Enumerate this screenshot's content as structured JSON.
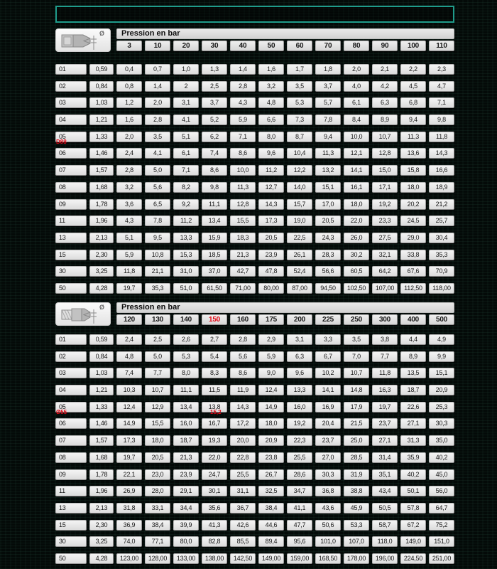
{
  "colors": {
    "note_box_border": "#1f9c8b",
    "red_accent": "#e30613",
    "cell_background": "#e6e6e6",
    "page_background": "#040a08"
  },
  "tables": [
    {
      "header_label": "Pression en bar",
      "diameter_symbol": "Ø",
      "pressures": [
        "3",
        "10",
        "20",
        "30",
        "40",
        "50",
        "60",
        "70",
        "80",
        "90",
        "100",
        "110"
      ],
      "red_pressure_indices": [],
      "rows": [
        {
          "id": "01",
          "diameter": "0,59",
          "values": [
            "0,4",
            "0,7",
            "1,0",
            "1,3",
            "1,4",
            "1,6",
            "1,7",
            "1,8",
            "2,0",
            "2,1",
            "2,2",
            "2,3"
          ]
        },
        {
          "id": "02",
          "diameter": "0,84",
          "values": [
            "0,8",
            "1,4",
            "2",
            "2,5",
            "2,8",
            "3,2",
            "3,5",
            "3,7",
            "4,0",
            "4,2",
            "4,5",
            "4,7"
          ]
        },
        {
          "id": "03",
          "diameter": "1,03",
          "values": [
            "1,2",
            "2,0",
            "3,1",
            "3,7",
            "4,3",
            "4,8",
            "5,3",
            "5,7",
            "6,1",
            "6,3",
            "6,8",
            "7,1"
          ]
        },
        {
          "id": "04",
          "diameter": "1,21",
          "values": [
            "1,6",
            "2,8",
            "4,1",
            "5,2",
            "5,9",
            "6,6",
            "7,3",
            "7,8",
            "8,4",
            "8,9",
            "9,4",
            "9,8"
          ]
        },
        {
          "id": "05",
          "diameter": "1,33",
          "values": [
            "2,0",
            "3,5",
            "5,1",
            "6,2",
            "7,1",
            "8,0",
            "8,7",
            "9,4",
            "10,0",
            "10,7",
            "11,3",
            "11,8"
          ]
        },
        {
          "id": "06",
          "diameter": "1,46",
          "values": [
            "2,4",
            "4,1",
            "6,1",
            "7,4",
            "8,6",
            "9,6",
            "10,4",
            "11,3",
            "12,1",
            "12,8",
            "13,6",
            "14,3"
          ]
        },
        {
          "id": "07",
          "diameter": "1,57",
          "values": [
            "2,8",
            "5,0",
            "7,1",
            "8,6",
            "10,0",
            "11,2",
            "12,2",
            "13,2",
            "14,1",
            "15,0",
            "15,8",
            "16,6"
          ]
        },
        {
          "id": "08",
          "diameter": "1,68",
          "values": [
            "3,2",
            "5,6",
            "8,2",
            "9,8",
            "11,3",
            "12,7",
            "14,0",
            "15,1",
            "16,1",
            "17,1",
            "18,0",
            "18,9"
          ]
        },
        {
          "id": "09",
          "diameter": "1,78",
          "values": [
            "3,6",
            "6,5",
            "9,2",
            "11,1",
            "12,8",
            "14,3",
            "15,7",
            "17,0",
            "18,0",
            "19,2",
            "20,2",
            "21,2"
          ]
        },
        {
          "id": "11",
          "diameter": "1,96",
          "values": [
            "4,3",
            "7,8",
            "11,2",
            "13,4",
            "15,5",
            "17,3",
            "19,0",
            "20,5",
            "22,0",
            "23,3",
            "24,5",
            "25,7"
          ]
        },
        {
          "id": "13",
          "diameter": "2,13",
          "values": [
            "5,1",
            "9,5",
            "13,3",
            "15,9",
            "18,3",
            "20,5",
            "22,5",
            "24,3",
            "26,0",
            "27,5",
            "29,0",
            "30,4"
          ]
        },
        {
          "id": "15",
          "diameter": "2,30",
          "values": [
            "5,9",
            "10,8",
            "15,3",
            "18,5",
            "21,3",
            "23,9",
            "26,1",
            "28,3",
            "30,2",
            "32,1",
            "33,8",
            "35,3"
          ]
        },
        {
          "id": "30",
          "diameter": "3,25",
          "values": [
            "11,8",
            "21,1",
            "31,0",
            "37,0",
            "42,7",
            "47,8",
            "52,4",
            "56,6",
            "60,5",
            "64,2",
            "67,6",
            "70,9"
          ]
        },
        {
          "id": "50",
          "diameter": "4,28",
          "values": [
            "19,7",
            "35,3",
            "51,0",
            "61,50",
            "71,00",
            "80,00",
            "87,00",
            "94,50",
            "102,50",
            "107,00",
            "112,50",
            "118,00"
          ]
        }
      ],
      "annotations": [
        {
          "text": "D88"
        }
      ]
    },
    {
      "header_label": "Pression en bar",
      "diameter_symbol": "Ø",
      "pressures": [
        "120",
        "130",
        "140",
        "150",
        "160",
        "175",
        "200",
        "225",
        "250",
        "300",
        "400",
        "500"
      ],
      "red_pressure_indices": [
        3
      ],
      "rows": [
        {
          "id": "01",
          "diameter": "0,59",
          "values": [
            "2,4",
            "2,5",
            "2,6",
            "2,7",
            "2,8",
            "2,9",
            "3,1",
            "3,3",
            "3,5",
            "3,8",
            "4,4",
            "4,9"
          ]
        },
        {
          "id": "02",
          "diameter": "0,84",
          "values": [
            "4,8",
            "5,0",
            "5,3",
            "5,4",
            "5,6",
            "5,9",
            "6,3",
            "6,7",
            "7,0",
            "7,7",
            "8,9",
            "9,9"
          ]
        },
        {
          "id": "03",
          "diameter": "1,03",
          "values": [
            "7,4",
            "7,7",
            "8,0",
            "8,3",
            "8,6",
            "9,0",
            "9,6",
            "10,2",
            "10,7",
            "11,8",
            "13,5",
            "15,1"
          ]
        },
        {
          "id": "04",
          "diameter": "1,21",
          "values": [
            "10,3",
            "10,7",
            "11,1",
            "11,5",
            "11,9",
            "12,4",
            "13,3",
            "14,1",
            "14,8",
            "16,3",
            "18,7",
            "20,9"
          ]
        },
        {
          "id": "05",
          "diameter": "1,33",
          "values": [
            "12,4",
            "12,9",
            "13,4",
            "13,8",
            "14,3",
            "14,9",
            "16,0",
            "16,9",
            "17,9",
            "19,7",
            "22,6",
            "25,3"
          ]
        },
        {
          "id": "06",
          "diameter": "1,46",
          "values": [
            "14,9",
            "15,5",
            "16,0",
            "16,7",
            "17,2",
            "18,0",
            "19,2",
            "20,4",
            "21,5",
            "23,7",
            "27,1",
            "30,3"
          ]
        },
        {
          "id": "07",
          "diameter": "1,57",
          "values": [
            "17,3",
            "18,0",
            "18,7",
            "19,3",
            "20,0",
            "20,9",
            "22,3",
            "23,7",
            "25,0",
            "27,1",
            "31,3",
            "35,0"
          ]
        },
        {
          "id": "08",
          "diameter": "1,68",
          "values": [
            "19,7",
            "20,5",
            "21,3",
            "22,0",
            "22,8",
            "23,8",
            "25,5",
            "27,0",
            "28,5",
            "31,4",
            "35,9",
            "40,2"
          ]
        },
        {
          "id": "09",
          "diameter": "1,78",
          "values": [
            "22,1",
            "23,0",
            "23,9",
            "24,7",
            "25,5",
            "26,7",
            "28,6",
            "30,3",
            "31,9",
            "35,1",
            "40,2",
            "45,0"
          ]
        },
        {
          "id": "11",
          "diameter": "1,96",
          "values": [
            "26,9",
            "28,0",
            "29,1",
            "30,1",
            "31,1",
            "32,5",
            "34,7",
            "36,8",
            "38,8",
            "43,4",
            "50,1",
            "56,0"
          ]
        },
        {
          "id": "13",
          "diameter": "2,13",
          "values": [
            "31,8",
            "33,1",
            "34,4",
            "35,6",
            "36,7",
            "38,4",
            "41,1",
            "43,6",
            "45,9",
            "50,5",
            "57,8",
            "64,7"
          ]
        },
        {
          "id": "15",
          "diameter": "2,30",
          "values": [
            "36,9",
            "38,4",
            "39,9",
            "41,3",
            "42,6",
            "44,6",
            "47,7",
            "50,6",
            "53,3",
            "58,7",
            "67,2",
            "75,2"
          ]
        },
        {
          "id": "30",
          "diameter": "3,25",
          "values": [
            "74,0",
            "77,1",
            "80,0",
            "82,8",
            "85,5",
            "89,4",
            "95,6",
            "101,0",
            "107,0",
            "118,0",
            "149,0",
            "151,0"
          ]
        },
        {
          "id": "50",
          "diameter": "4,28",
          "values": [
            "123,00",
            "128,00",
            "133,00",
            "138,00",
            "142,50",
            "149,00",
            "159,00",
            "168,50",
            "178,00",
            "196,00",
            "224,50",
            "251,00"
          ]
        }
      ],
      "annotations": [
        {
          "text": "Ø55"
        },
        {
          "text": "15,2"
        }
      ]
    }
  ]
}
